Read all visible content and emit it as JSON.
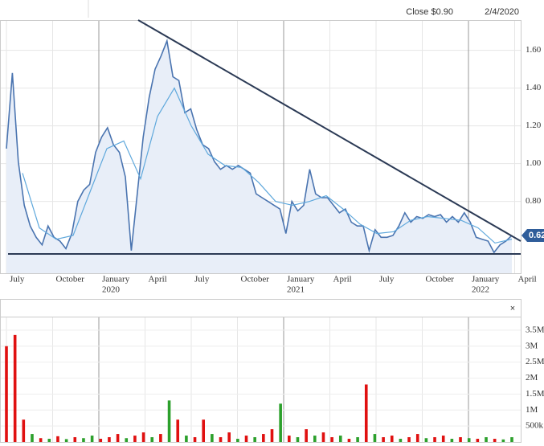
{
  "header": {
    "close": "Close $0.90",
    "date": "2/4/2020"
  },
  "chart_data": [
    {
      "type": "line",
      "ylim": [
        0.42,
        1.76
      ],
      "yticks": [
        {
          "value": 0.8,
          "label": "0.80"
        },
        {
          "value": 1.0,
          "label": "1.00"
        },
        {
          "value": 1.2,
          "label": "1.20"
        },
        {
          "value": 1.4,
          "label": "1.40"
        },
        {
          "value": 1.6,
          "label": "1.60"
        }
      ],
      "grid": true,
      "x_labels": [
        {
          "label": "July"
        },
        {
          "label": "October"
        },
        {
          "label": "January",
          "year": "2020"
        },
        {
          "label": "April"
        },
        {
          "label": "July"
        },
        {
          "label": "October"
        },
        {
          "label": "January",
          "year": "2021"
        },
        {
          "label": "April"
        },
        {
          "label": "July"
        },
        {
          "label": "October"
        },
        {
          "label": "January",
          "year": "2022"
        },
        {
          "label": "April"
        }
      ],
      "series": [
        {
          "color": "#4a74b0",
          "fill": "#e8eef8",
          "values": [
            1.08,
            1.48,
            1.01,
            0.78,
            0.67,
            0.61,
            0.57,
            0.67,
            0.61,
            0.59,
            0.55,
            0.63,
            0.8,
            0.86,
            0.89,
            1.06,
            1.14,
            1.19,
            1.1,
            1.06,
            0.93,
            0.54,
            0.84,
            1.14,
            1.35,
            1.5,
            1.57,
            1.65,
            1.46,
            1.44,
            1.27,
            1.29,
            1.18,
            1.1,
            1.08,
            1.01,
            0.97,
            0.99,
            0.97,
            0.99,
            0.97,
            0.95,
            0.84,
            0.82,
            0.8,
            0.78,
            0.76,
            0.63,
            0.8,
            0.75,
            0.78,
            0.97,
            0.84,
            0.82,
            0.82,
            0.78,
            0.74,
            0.76,
            0.69,
            0.67,
            0.67,
            0.54,
            0.65,
            0.61,
            0.61,
            0.62,
            0.67,
            0.74,
            0.69,
            0.72,
            0.71,
            0.73,
            0.72,
            0.73,
            0.69,
            0.72,
            0.69,
            0.74,
            0.69,
            0.61,
            0.6,
            0.59,
            0.53,
            0.57,
            0.59,
            0.62
          ]
        },
        {
          "color": "#5fa8dc",
          "values": [
            0.95,
            0.66,
            0.6,
            0.62,
            0.85,
            1.08,
            1.12,
            0.92,
            1.25,
            1.4,
            1.2,
            1.05,
            0.99,
            0.98,
            0.9,
            0.8,
            0.78,
            0.8,
            0.83,
            0.76,
            0.68,
            0.63,
            0.64,
            0.7,
            0.72,
            0.71,
            0.7,
            0.66,
            0.58,
            0.6
          ]
        }
      ],
      "current_value": 0.62
    },
    {
      "type": "bar",
      "ylim": [
        0,
        3900000
      ],
      "yticks": [
        {
          "value": 500000,
          "label": "500k"
        },
        {
          "value": 1000000,
          "label": "1M"
        },
        {
          "value": 1500000,
          "label": "1.5M"
        },
        {
          "value": 2000000,
          "label": "2M"
        },
        {
          "value": 2500000,
          "label": "2.5M"
        },
        {
          "value": 3000000,
          "label": "3M"
        },
        {
          "value": 3500000,
          "label": "3.5M"
        }
      ],
      "values": [
        3000000,
        3350000,
        700000,
        250000,
        120000,
        100000,
        180000,
        90000,
        150000,
        120000,
        200000,
        100000,
        150000,
        250000,
        120000,
        200000,
        300000,
        150000,
        250000,
        1300000,
        700000,
        200000,
        150000,
        700000,
        250000,
        150000,
        300000,
        100000,
        200000,
        150000,
        250000,
        400000,
        1200000,
        200000,
        150000,
        400000,
        200000,
        300000,
        150000,
        200000,
        100000,
        150000,
        1800000,
        250000,
        150000,
        200000,
        100000,
        150000,
        250000,
        120000,
        150000,
        200000,
        100000,
        150000,
        120000,
        100000,
        150000,
        100000,
        80000,
        150000
      ],
      "colors": [
        "#e01010",
        "#e01010",
        "#e01010",
        "#2ca02c",
        "#e01010",
        "#2ca02c",
        "#e01010",
        "#2ca02c",
        "#e01010",
        "#2ca02c",
        "#2ca02c",
        "#e01010",
        "#e01010",
        "#e01010",
        "#2ca02c",
        "#e01010",
        "#e01010",
        "#2ca02c",
        "#e01010",
        "#2ca02c",
        "#e01010",
        "#2ca02c",
        "#e01010",
        "#e01010",
        "#2ca02c",
        "#e01010",
        "#e01010",
        "#2ca02c",
        "#e01010",
        "#2ca02c",
        "#e01010",
        "#e01010",
        "#2ca02c",
        "#e01010",
        "#2ca02c",
        "#e01010",
        "#2ca02c",
        "#e01010",
        "#e01010",
        "#2ca02c",
        "#e01010",
        "#2ca02c",
        "#e01010",
        "#2ca02c",
        "#e01010",
        "#e01010",
        "#2ca02c",
        "#e01010",
        "#e01010",
        "#2ca02c",
        "#e01010",
        "#e01010",
        "#2ca02c",
        "#e01010",
        "#2ca02c",
        "#e01010",
        "#2ca02c",
        "#e01010",
        "#2ca02c",
        "#2ca02c"
      ]
    }
  ]
}
